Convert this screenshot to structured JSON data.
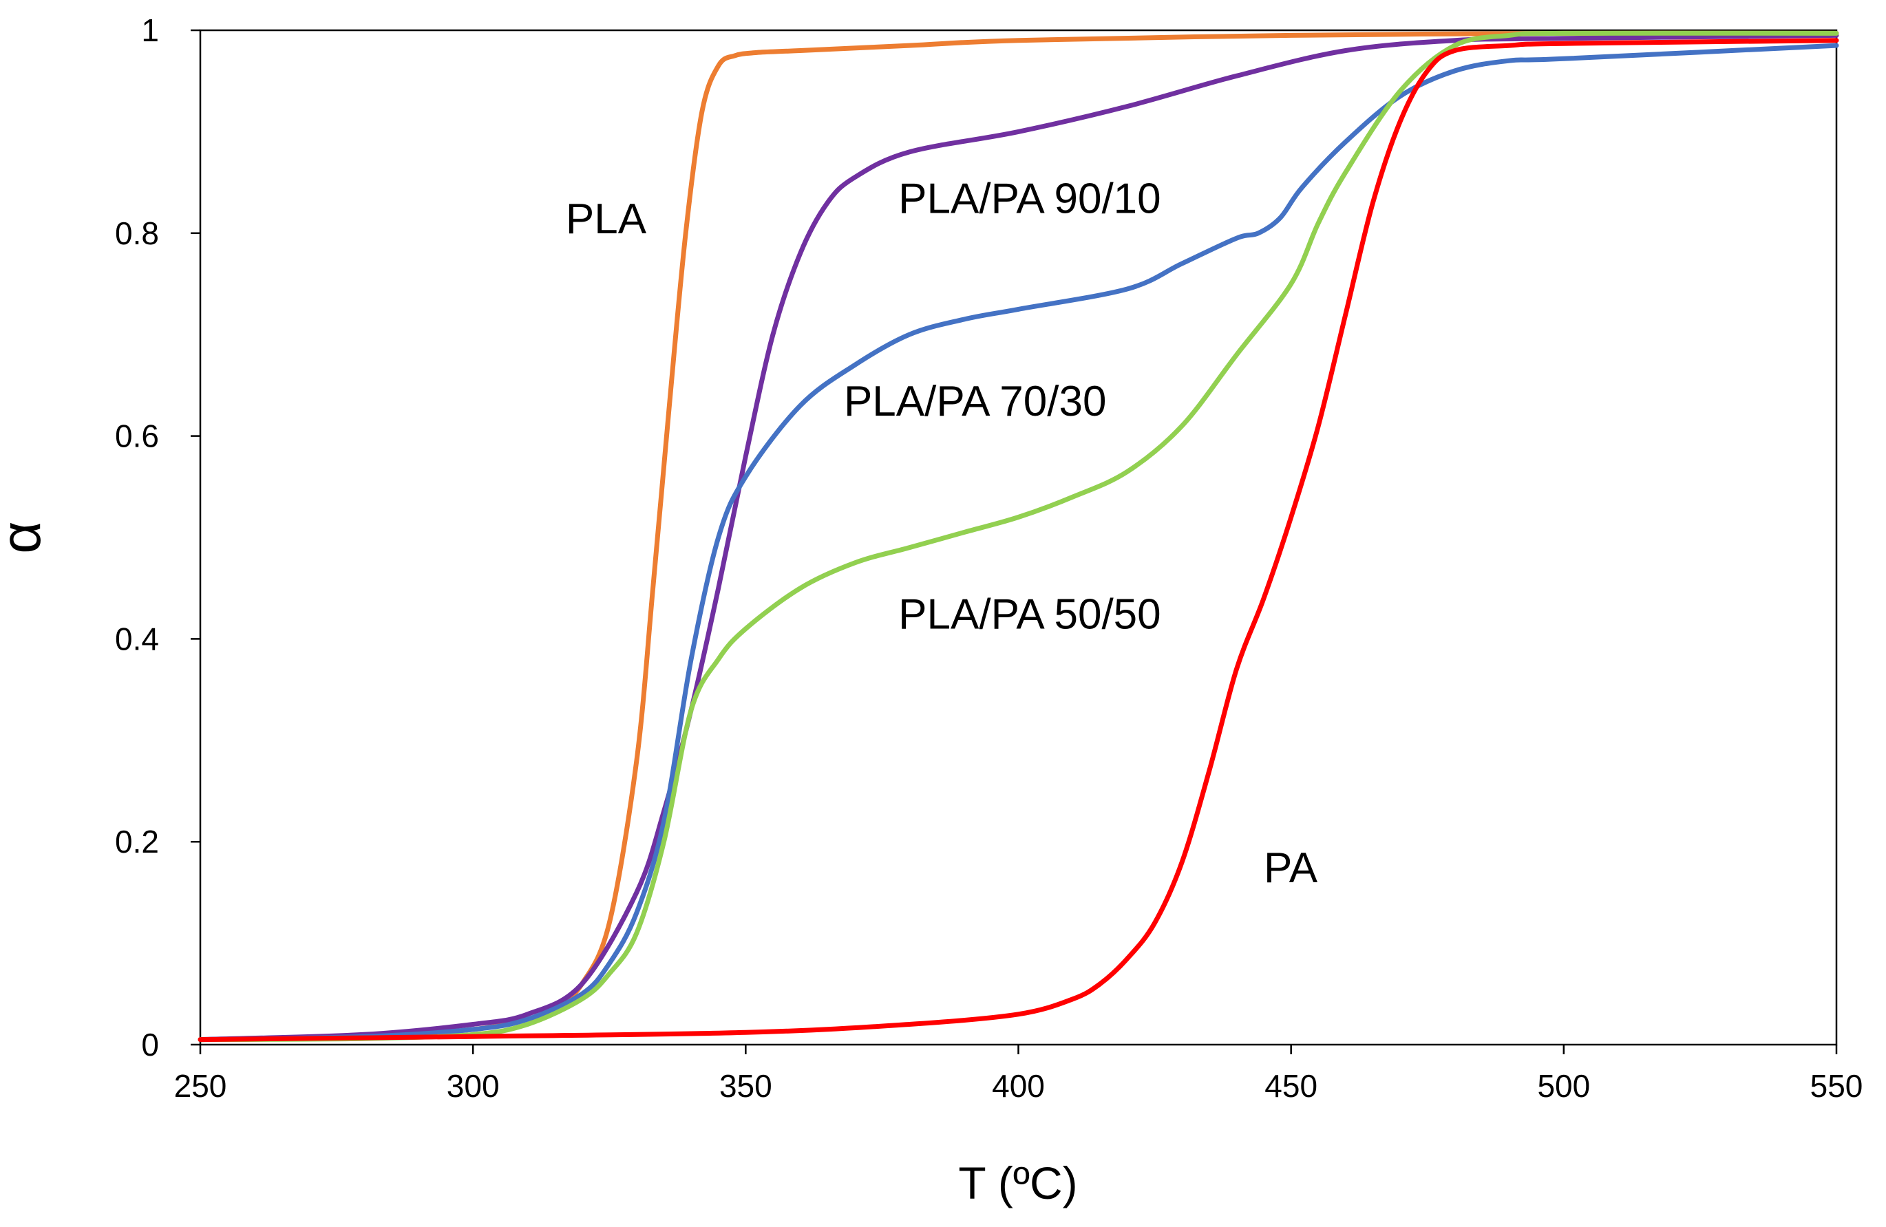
{
  "chart_data": {
    "type": "line",
    "title": "",
    "xlabel": "T (ºC)",
    "ylabel": "α",
    "xlim": [
      250,
      550
    ],
    "ylim": [
      0,
      1
    ],
    "xticks": [
      "250",
      "300",
      "350",
      "400",
      "450",
      "500",
      "550"
    ],
    "yticks": [
      "0",
      "0.2",
      "0.4",
      "0.6",
      "0.8",
      "1"
    ],
    "grid": false,
    "series": [
      {
        "name": "PLA",
        "color": "#ED7D31",
        "label_anchor": [
          317,
          0.8
        ],
        "x": [
          250,
          280,
          300,
          310,
          315,
          320,
          325,
          330,
          333,
          336,
          339,
          342,
          345,
          348,
          352,
          360,
          380,
          400,
          450,
          500,
          550
        ],
        "y": [
          0.005,
          0.008,
          0.015,
          0.025,
          0.035,
          0.06,
          0.12,
          0.28,
          0.45,
          0.63,
          0.8,
          0.92,
          0.965,
          0.975,
          0.978,
          0.98,
          0.985,
          0.99,
          0.995,
          0.997,
          0.997
        ]
      },
      {
        "name": "PLA/PA 90/10",
        "color": "#7030A0",
        "label_anchor": [
          378,
          0.82
        ],
        "x": [
          250,
          280,
          300,
          310,
          320,
          330,
          335,
          340,
          345,
          350,
          355,
          360,
          365,
          370,
          380,
          400,
          420,
          440,
          460,
          480,
          500,
          550
        ],
        "y": [
          0.005,
          0.01,
          0.02,
          0.03,
          0.06,
          0.15,
          0.23,
          0.33,
          0.45,
          0.58,
          0.7,
          0.78,
          0.83,
          0.855,
          0.88,
          0.9,
          0.925,
          0.955,
          0.98,
          0.99,
          0.992,
          0.995
        ]
      },
      {
        "name": "PLA/PA 70/30",
        "color": "#4472C4",
        "label_anchor": [
          368,
          0.62
        ],
        "x": [
          250,
          280,
          300,
          310,
          320,
          325,
          330,
          335,
          340,
          345,
          350,
          360,
          370,
          380,
          390,
          400,
          420,
          430,
          440,
          444,
          448,
          452,
          460,
          470,
          480,
          490,
          500,
          550
        ],
        "y": [
          0.005,
          0.008,
          0.015,
          0.025,
          0.05,
          0.08,
          0.13,
          0.22,
          0.38,
          0.5,
          0.56,
          0.63,
          0.67,
          0.7,
          0.715,
          0.725,
          0.745,
          0.77,
          0.795,
          0.8,
          0.815,
          0.845,
          0.89,
          0.935,
          0.96,
          0.97,
          0.972,
          0.985
        ]
      },
      {
        "name": "PLA/PA 50/50",
        "color": "#92D050",
        "label_anchor": [
          378,
          0.41
        ],
        "x": [
          250,
          280,
          300,
          310,
          320,
          325,
          330,
          335,
          340,
          345,
          350,
          360,
          370,
          380,
          390,
          400,
          410,
          420,
          430,
          440,
          450,
          455,
          460,
          470,
          480,
          490,
          500,
          550
        ],
        "y": [
          0.005,
          0.006,
          0.01,
          0.02,
          0.045,
          0.07,
          0.11,
          0.2,
          0.33,
          0.38,
          0.41,
          0.45,
          0.475,
          0.49,
          0.505,
          0.52,
          0.54,
          0.565,
          0.61,
          0.68,
          0.75,
          0.81,
          0.86,
          0.94,
          0.985,
          0.995,
          0.997,
          0.997
        ]
      },
      {
        "name": "PA",
        "color": "#FF0000",
        "label_anchor": [
          445,
          0.16
        ],
        "x": [
          250,
          300,
          350,
          380,
          400,
          410,
          415,
          420,
          425,
          430,
          435,
          440,
          445,
          450,
          455,
          460,
          465,
          470,
          475,
          480,
          490,
          500,
          550
        ],
        "y": [
          0.005,
          0.008,
          0.012,
          0.02,
          0.03,
          0.045,
          0.06,
          0.085,
          0.12,
          0.18,
          0.27,
          0.37,
          0.44,
          0.52,
          0.61,
          0.72,
          0.83,
          0.91,
          0.96,
          0.98,
          0.985,
          0.987,
          0.99
        ]
      }
    ]
  }
}
